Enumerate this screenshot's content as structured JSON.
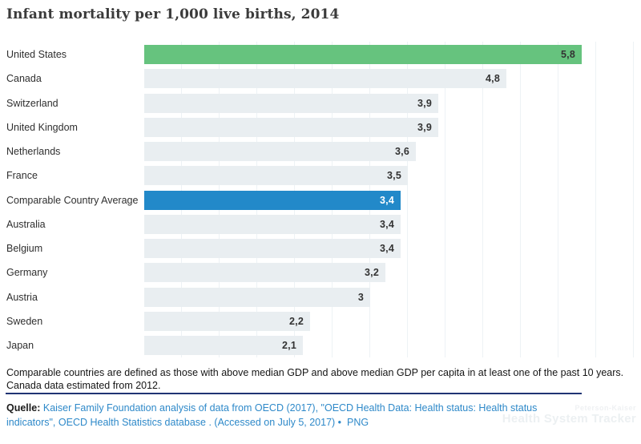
{
  "title": "Infant mortality per 1,000 live births, 2014",
  "chart_data": {
    "type": "bar",
    "orientation": "horizontal",
    "title": "Infant mortality per 1,000 live births, 2014",
    "xlabel": "",
    "ylabel": "",
    "xlim": [
      0,
      5.8
    ],
    "grid": "faint vertical gridlines every 0.5 units",
    "legend": "none",
    "decimal_separator": ",",
    "value_labels_position": "inside-right",
    "rows": [
      {
        "label": "United States",
        "value": 5.8,
        "display": "5,8",
        "color": "green"
      },
      {
        "label": "Canada",
        "value": 4.8,
        "display": "4,8",
        "color": "gray"
      },
      {
        "label": "Switzerland",
        "value": 3.9,
        "display": "3,9",
        "color": "gray"
      },
      {
        "label": "United Kingdom",
        "value": 3.9,
        "display": "3,9",
        "color": "gray"
      },
      {
        "label": "Netherlands",
        "value": 3.6,
        "display": "3,6",
        "color": "gray"
      },
      {
        "label": "France",
        "value": 3.5,
        "display": "3,5",
        "color": "gray"
      },
      {
        "label": "Comparable Country Average",
        "value": 3.4,
        "display": "3,4",
        "color": "blue"
      },
      {
        "label": "Australia",
        "value": 3.4,
        "display": "3,4",
        "color": "gray"
      },
      {
        "label": "Belgium",
        "value": 3.4,
        "display": "3,4",
        "color": "gray"
      },
      {
        "label": "Germany",
        "value": 3.2,
        "display": "3,2",
        "color": "gray"
      },
      {
        "label": "Austria",
        "value": 3.0,
        "display": "3",
        "color": "gray"
      },
      {
        "label": "Sweden",
        "value": 2.2,
        "display": "2,2",
        "color": "gray"
      },
      {
        "label": "Japan",
        "value": 2.1,
        "display": "2,1",
        "color": "gray"
      }
    ]
  },
  "colors": {
    "green": "#66c37e",
    "blue": "#2289c9",
    "gray": "#e9eef1",
    "value_dark": "#333333",
    "value_light": "#ffffff",
    "rule_navy": "#203473",
    "link_blue": "#2e89c9"
  },
  "footnote": {
    "line1": "Comparable countries are defined as those with above median GDP and above median GDP per capita in at least one of the past 10 years.",
    "line2": "Canada data estimated from 2012."
  },
  "source": {
    "prefix": "Quelle:",
    "line1_link": "Kaiser Family Foundation analysis of data from OECD (2017), \"OECD Health Data: Health status: Health status",
    "line2_link": "indicators\", OECD Health Statistics database . (Accessed on July 5, 2017)",
    "separator": "•",
    "format_link": "PNG"
  },
  "watermark": {
    "line1": "Peterson-Kaiser",
    "line2": "Health System Tracker"
  }
}
